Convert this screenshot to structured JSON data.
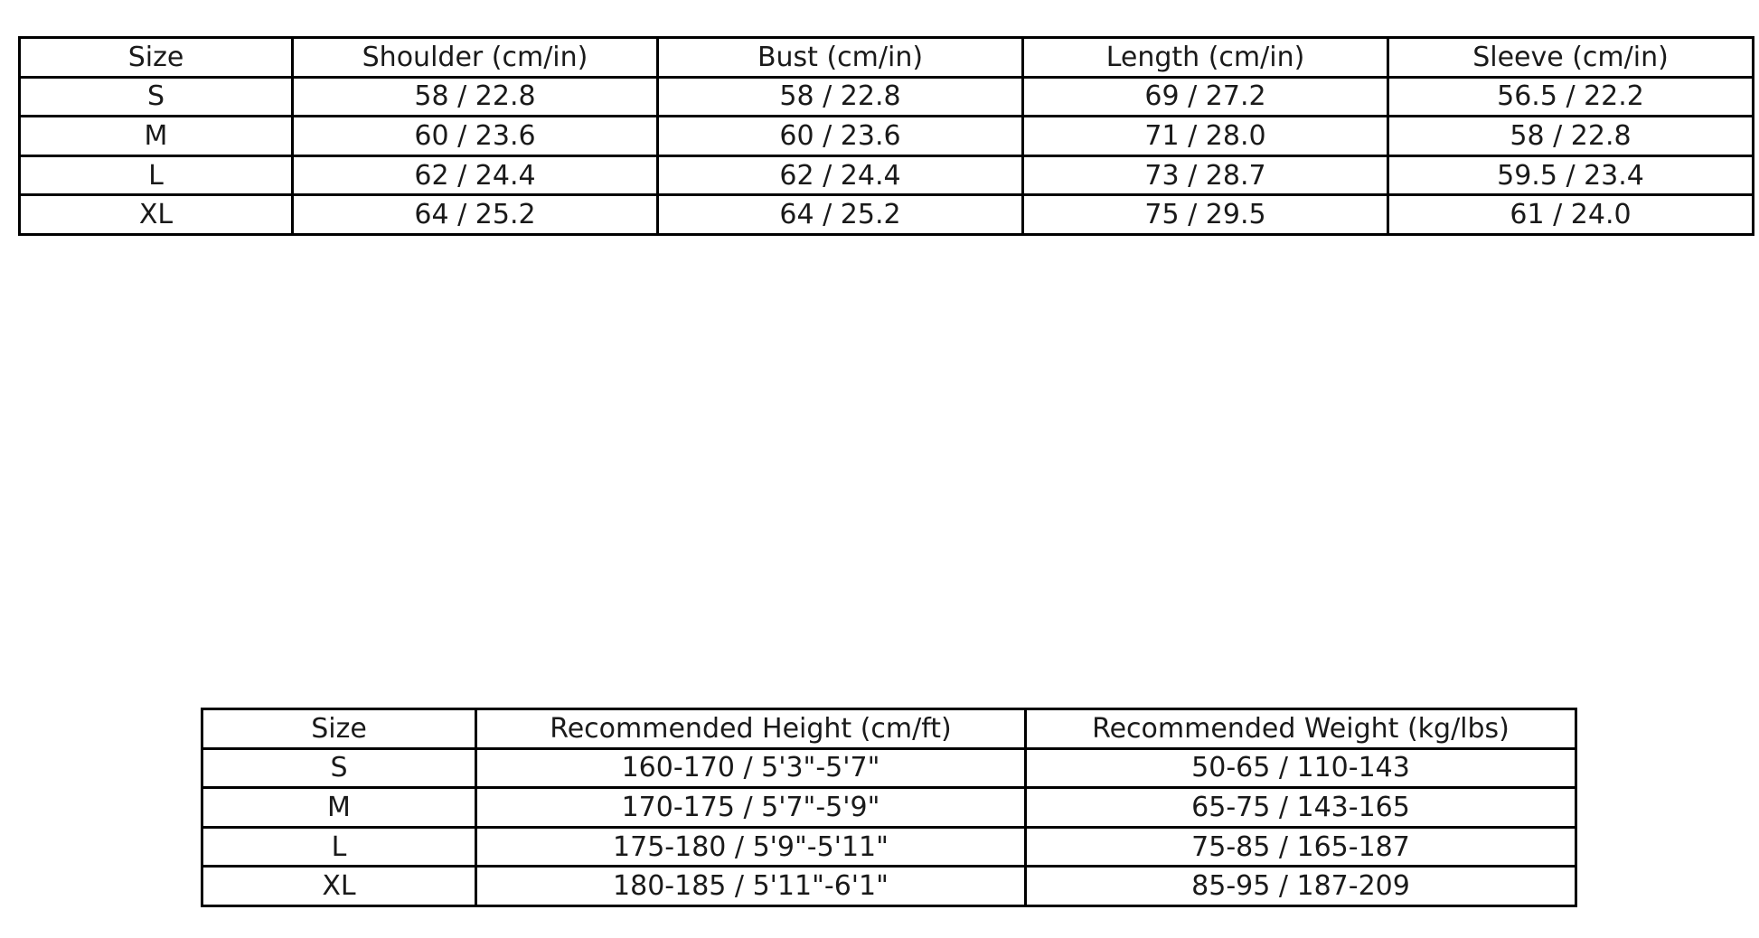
{
  "page": {
    "background_color": "#ffffff",
    "border_color": "#000000",
    "text_color": "#1a1a1a"
  },
  "chart_data": [
    {
      "type": "table",
      "name": "garment-measurements",
      "headers": [
        "Size",
        "Shoulder (cm/in)",
        "Bust (cm/in)",
        "Length (cm/in)",
        "Sleeve (cm/in)"
      ],
      "rows": [
        [
          "S",
          "58 / 22.8",
          "58 / 22.8",
          "69 / 27.2",
          "56.5 / 22.2"
        ],
        [
          "M",
          "60 / 23.6",
          "60 / 23.6",
          "71 / 28.0",
          "58 / 22.8"
        ],
        [
          "L",
          "62 / 24.4",
          "62 / 24.4",
          "73 / 28.7",
          "59.5 / 23.4"
        ],
        [
          "XL",
          "64 / 25.2",
          "64 / 25.2",
          "75 / 29.5",
          "61 / 24.0"
        ]
      ]
    },
    {
      "type": "table",
      "name": "size-recommendations",
      "headers": [
        "Size",
        "Recommended Height (cm/ft)",
        "Recommended Weight (kg/lbs)"
      ],
      "rows": [
        [
          "S",
          "160-170 / 5'3\"-5'7\"",
          "50-65 / 110-143"
        ],
        [
          "M",
          "170-175 / 5'7\"-5'9\"",
          "65-75 / 143-165"
        ],
        [
          "L",
          "175-180 / 5'9\"-5'11\"",
          "75-85 / 165-187"
        ],
        [
          "XL",
          "180-185 / 5'11\"-6'1\"",
          "85-95 / 187-209"
        ]
      ]
    }
  ]
}
